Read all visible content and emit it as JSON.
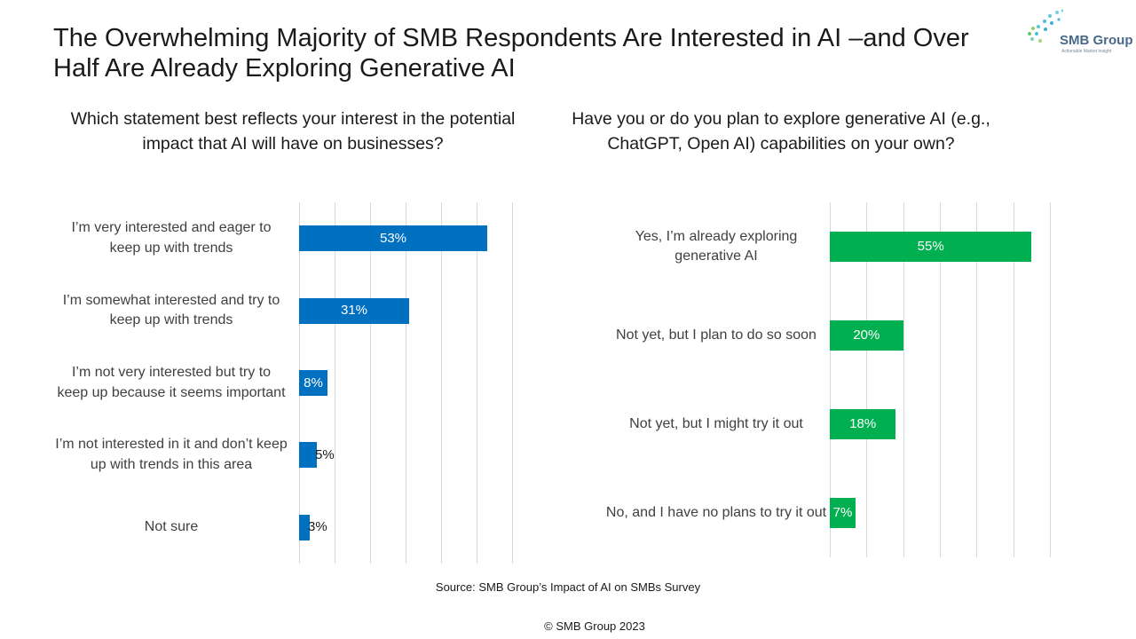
{
  "title": "The Overwhelming Majority of SMB Respondents Are Interested in AI –and Over Half Are Already Exploring Generative AI",
  "logo": {
    "name": "SMB Group",
    "tagline": "Actionable Market Insight"
  },
  "source": "Source: SMB Group’s Impact of AI on SMBs Survey",
  "copyright": "© SMB Group  2023",
  "colors": {
    "left_bars": "#0070c0",
    "right_bars": "#00b050",
    "gridlines": "#d9d9d9"
  },
  "chart_data": [
    {
      "type": "bar",
      "orientation": "horizontal",
      "title": "Which statement best reflects your interest in the potential impact that AI will have on businesses?",
      "categories": [
        "I’m very interested and eager to keep up with trends",
        "I’m somewhat interested and try to keep up with trends",
        "I’m not very interested but try to keep up because it seems important",
        "I’m not interested in it and don’t keep up with trends in this area",
        "Not sure"
      ],
      "values": [
        53,
        31,
        8,
        5,
        3
      ],
      "value_labels": [
        "53%",
        "31%",
        "8%",
        "5%",
        "3%"
      ],
      "unit": "%",
      "xlim": [
        0,
        60
      ],
      "grid": true,
      "color": "#0070c0"
    },
    {
      "type": "bar",
      "orientation": "horizontal",
      "title": "Have you or do you plan to explore generative AI (e.g., ChatGPT, Open AI) capabilities on your own?",
      "categories": [
        "Yes, I’m already exploring generative AI",
        "Not yet, but I plan to do so soon",
        "Not yet, but I might try it out",
        "No, and I have no plans to try it out"
      ],
      "values": [
        55,
        20,
        18,
        7
      ],
      "value_labels": [
        "55%",
        "20%",
        "18%",
        "7%"
      ],
      "unit": "%",
      "xlim": [
        0,
        60
      ],
      "grid": true,
      "color": "#00b050"
    }
  ]
}
